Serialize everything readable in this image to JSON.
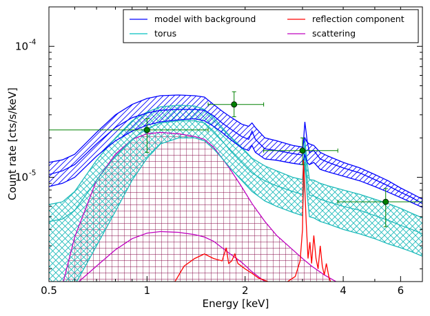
{
  "chart_data": {
    "type": "line",
    "xlabel": "Energy [keV]",
    "ylabel": "Count rate [cts/s/keV]",
    "xscale": "log",
    "yscale": "log",
    "xlim": [
      0.5,
      7.0
    ],
    "ylim": [
      1.6e-06,
      0.0002
    ],
    "x_ticks": [
      {
        "value": 0.5,
        "label": "0.5"
      },
      {
        "value": 1,
        "label": "1"
      },
      {
        "value": 2,
        "label": "2"
      },
      {
        "value": 4,
        "label": "4"
      },
      {
        "value": 6,
        "label": "6"
      }
    ],
    "y_ticks": [
      {
        "value": 1e-05,
        "base": "10",
        "exp": "-5"
      },
      {
        "value": 0.0001,
        "base": "10",
        "exp": "-4"
      }
    ],
    "legend": {
      "placement": "top-right",
      "entries": [
        {
          "label": "model with background",
          "color": "#0000ff"
        },
        {
          "label": "reflection component",
          "color": "#ff0000"
        },
        {
          "label": "torus",
          "color": "#00bfbf"
        },
        {
          "label": "scattering",
          "color": "#bf00bf"
        }
      ]
    },
    "colors": {
      "model": "#0000ff",
      "torus": "#1cbaba",
      "reflection": "#ff0000",
      "scattering": "#bf00bf",
      "data": "#008000"
    },
    "series": [
      {
        "key": "model",
        "x": [
          0.5,
          0.55,
          0.6,
          0.7,
          0.8,
          0.9,
          1.0,
          1.1,
          1.25,
          1.4,
          1.5,
          1.6,
          1.7,
          1.8,
          1.95,
          2.05,
          2.1,
          2.15,
          2.3,
          2.5,
          2.8,
          3.0,
          3.05,
          3.1,
          3.15,
          3.25,
          3.4,
          3.6,
          4.0,
          4.5,
          5.0,
          5.5,
          6.0,
          6.5,
          7.0
        ],
        "upper": [
          1.3e-05,
          1.36e-05,
          1.5e-05,
          2.2e-05,
          3e-05,
          3.6e-05,
          4e-05,
          4.2e-05,
          4.25e-05,
          4.2e-05,
          4.1e-05,
          3.6e-05,
          3.2e-05,
          2.9e-05,
          2.55e-05,
          2.45e-05,
          2.6e-05,
          2.4e-05,
          2e-05,
          1.9e-05,
          1.75e-05,
          1.7e-05,
          2e-05,
          1.85e-05,
          1.8e-05,
          1.75e-05,
          1.55e-05,
          1.45e-05,
          1.3e-05,
          1.18e-05,
          1.05e-05,
          9.4e-06,
          8.3e-06,
          7.5e-06,
          6.8e-06
        ],
        "central": [
          1.05e-05,
          1.12e-05,
          1.25e-05,
          1.8e-05,
          2.4e-05,
          2.85e-05,
          3.1e-05,
          3.25e-05,
          3.3e-05,
          3.3e-05,
          3.25e-05,
          2.95e-05,
          2.6e-05,
          2.35e-05,
          2.05e-05,
          1.95e-05,
          2.25e-05,
          1.95e-05,
          1.65e-05,
          1.6e-05,
          1.52e-05,
          1.48e-05,
          2.65e-05,
          1.9e-05,
          1.55e-05,
          1.6e-05,
          1.38e-05,
          1.3e-05,
          1.18e-05,
          1.08e-05,
          9.6e-06,
          8.6e-06,
          7.7e-06,
          7e-06,
          6.3e-06
        ],
        "lower": [
          8.5e-06,
          9e-06,
          1e-05,
          1.45e-05,
          1.9e-05,
          2.25e-05,
          2.5e-05,
          2.65e-05,
          2.75e-05,
          2.8e-05,
          2.7e-05,
          2.45e-05,
          2.2e-05,
          1.95e-05,
          1.68e-05,
          1.6e-05,
          1.75e-05,
          1.55e-05,
          1.38e-05,
          1.35e-05,
          1.28e-05,
          1.25e-05,
          1.5e-05,
          1.3e-05,
          1.25e-05,
          1.3e-05,
          1.15e-05,
          1.1e-05,
          1.02e-05,
          9.4e-06,
          8.5e-06,
          7.7e-06,
          7e-06,
          6.4e-06,
          5.9e-06
        ]
      },
      {
        "key": "torus",
        "x": [
          0.5,
          0.55,
          0.6,
          0.7,
          0.8,
          0.9,
          1.0,
          1.1,
          1.25,
          1.4,
          1.5,
          1.6,
          1.7,
          1.8,
          1.95,
          2.1,
          2.3,
          2.5,
          2.8,
          3.0,
          3.05,
          3.1,
          3.15,
          3.25,
          3.4,
          3.6,
          4.0,
          4.5,
          5.0,
          5.5,
          6.0,
          6.5,
          7.0
        ],
        "upper": [
          6.2e-06,
          6.5e-06,
          7.8e-06,
          1.35e-05,
          2e-05,
          2.7e-05,
          3.15e-05,
          3.45e-05,
          3.55e-05,
          3.5e-05,
          3.3e-05,
          2.85e-05,
          2.4e-05,
          2.05e-05,
          1.7e-05,
          1.4e-05,
          1.22e-05,
          1.12e-05,
          1e-05,
          9.6e-06,
          1.9e-05,
          1.3e-05,
          9.6e-06,
          9.5e-06,
          9e-06,
          8.6e-06,
          8e-06,
          7.4e-06,
          6.8e-06,
          6.3e-06,
          5.8e-06,
          5.3e-06,
          4.9e-06
        ],
        "central": [
          4.6e-06,
          4.8e-06,
          5.6e-06,
          9.5e-06,
          1.45e-05,
          1.95e-05,
          2.35e-05,
          2.6e-05,
          2.7e-05,
          2.7e-05,
          2.6e-05,
          2.25e-05,
          1.9e-05,
          1.6e-05,
          1.3e-05,
          1.08e-05,
          9.4e-06,
          8.6e-06,
          7.8e-06,
          7.4e-06,
          1.6e-05,
          9.8e-06,
          7.3e-06,
          7.2e-06,
          6.8e-06,
          6.5e-06,
          6e-06,
          5.6e-06,
          5.1e-06,
          4.7e-06,
          4.3e-06,
          4e-06,
          3.7e-06
        ],
        "lower": [
          1.5e-06,
          1.5e-06,
          1.5e-06,
          3e-06,
          5.5e-06,
          9.5e-06,
          1.4e-05,
          1.8e-05,
          2e-05,
          2e-05,
          1.9e-05,
          1.65e-05,
          1.4e-05,
          1.18e-05,
          9.5e-06,
          7.8e-06,
          6.6e-06,
          6e-06,
          5.4e-06,
          5.1e-06,
          1.3e-05,
          7.5e-06,
          5e-06,
          4.9e-06,
          4.6e-06,
          4.4e-06,
          4e-06,
          3.7e-06,
          3.4e-06,
          3.1e-06,
          2.9e-06,
          2.7e-06,
          2.5e-06
        ]
      },
      {
        "key": "scattering",
        "x": [
          0.5,
          0.55,
          0.6,
          0.7,
          0.8,
          0.9,
          1.0,
          1.1,
          1.25,
          1.4,
          1.5,
          1.6,
          1.7,
          1.8,
          1.95,
          2.1,
          2.3,
          2.5,
          2.8,
          3.0,
          3.2,
          3.5,
          3.8,
          4.0,
          4.3
        ],
        "upper": [
          1.5e-06,
          1.5e-06,
          3.5e-06,
          9.5e-06,
          1.5e-05,
          1.95e-05,
          2.15e-05,
          2.2e-05,
          2.15e-05,
          2.05e-05,
          1.95e-05,
          1.7e-05,
          1.4e-05,
          1.15e-05,
          8.5e-06,
          6.3e-06,
          4.6e-06,
          3.6e-06,
          2.8e-06,
          2.4e-06,
          2.1e-06,
          1.8e-06,
          1.6e-06,
          1.5e-06,
          1.5e-06
        ],
        "central": [
          1.5e-06,
          1.5e-06,
          1.5e-06,
          2.1e-06,
          2.8e-06,
          3.4e-06,
          3.75e-06,
          3.85e-06,
          3.8e-06,
          3.65e-06,
          3.5e-06,
          3.25e-06,
          2.9e-06,
          2.6e-06,
          2.25e-06,
          1.9e-06,
          1.6e-06,
          1.5e-06,
          1.5e-06,
          1.5e-06,
          1.5e-06,
          1.5e-06,
          1.5e-06,
          1.5e-06,
          1.5e-06
        ],
        "lower": [
          1.5e-06,
          1.5e-06,
          1.5e-06,
          1.5e-06,
          1.5e-06,
          1.5e-06,
          1.5e-06,
          1.5e-06,
          1.5e-06,
          1.5e-06,
          1.5e-06,
          1.5e-06,
          1.5e-06,
          1.5e-06,
          1.5e-06,
          1.5e-06,
          1.5e-06,
          1.5e-06,
          1.5e-06,
          1.5e-06,
          1.5e-06,
          1.5e-06,
          1.5e-06,
          1.5e-06,
          1.5e-06
        ]
      },
      {
        "key": "reflection",
        "x": [
          1.2,
          1.3,
          1.4,
          1.5,
          1.6,
          1.7,
          1.75,
          1.78,
          1.82,
          1.86,
          1.9,
          2.0,
          2.1,
          2.2,
          2.35,
          2.5,
          2.7,
          2.85,
          2.95,
          3.0,
          3.02,
          3.05,
          3.08,
          3.12,
          3.16,
          3.2,
          3.25,
          3.3,
          3.35,
          3.4,
          3.45,
          3.5,
          3.55,
          3.62,
          3.7
        ],
        "values": [
          1.5e-06,
          2.1e-06,
          2.4e-06,
          2.6e-06,
          2.4e-06,
          2.3e-06,
          2.9e-06,
          2.2e-06,
          2.3e-06,
          2.6e-06,
          2.2e-06,
          2e-06,
          1.85e-06,
          1.7e-06,
          1.6e-06,
          1.55e-06,
          1.6e-06,
          1.75e-06,
          2.3e-06,
          4e-06,
          1.35e-05,
          8e-06,
          4.5e-06,
          2.4e-06,
          3.2e-06,
          2.2e-06,
          3.6e-06,
          2.4e-06,
          2e-06,
          3e-06,
          2.1e-06,
          1.8e-06,
          2.2e-06,
          1.7e-06,
          1.5e-06
        ]
      }
    ],
    "data_points": [
      {
        "x": 1.0,
        "y": 2.3e-05,
        "xerr": [
          0.5,
          1.54
        ],
        "yerr": [
          1.55e-05,
          2.8e-05
        ]
      },
      {
        "x": 1.85,
        "y": 3.6e-05,
        "xerr": [
          1.54,
          2.28
        ],
        "yerr": [
          2.9e-05,
          4.5e-05
        ]
      },
      {
        "x": 3.0,
        "y": 1.6e-05,
        "xerr": [
          2.28,
          3.85
        ],
        "yerr": [
          1.25e-05,
          2e-05
        ]
      },
      {
        "x": 5.4,
        "y": 6.5e-06,
        "xerr": [
          3.85,
          7.0
        ],
        "yerr": [
          4.2e-06,
          8.2e-06
        ]
      }
    ]
  }
}
